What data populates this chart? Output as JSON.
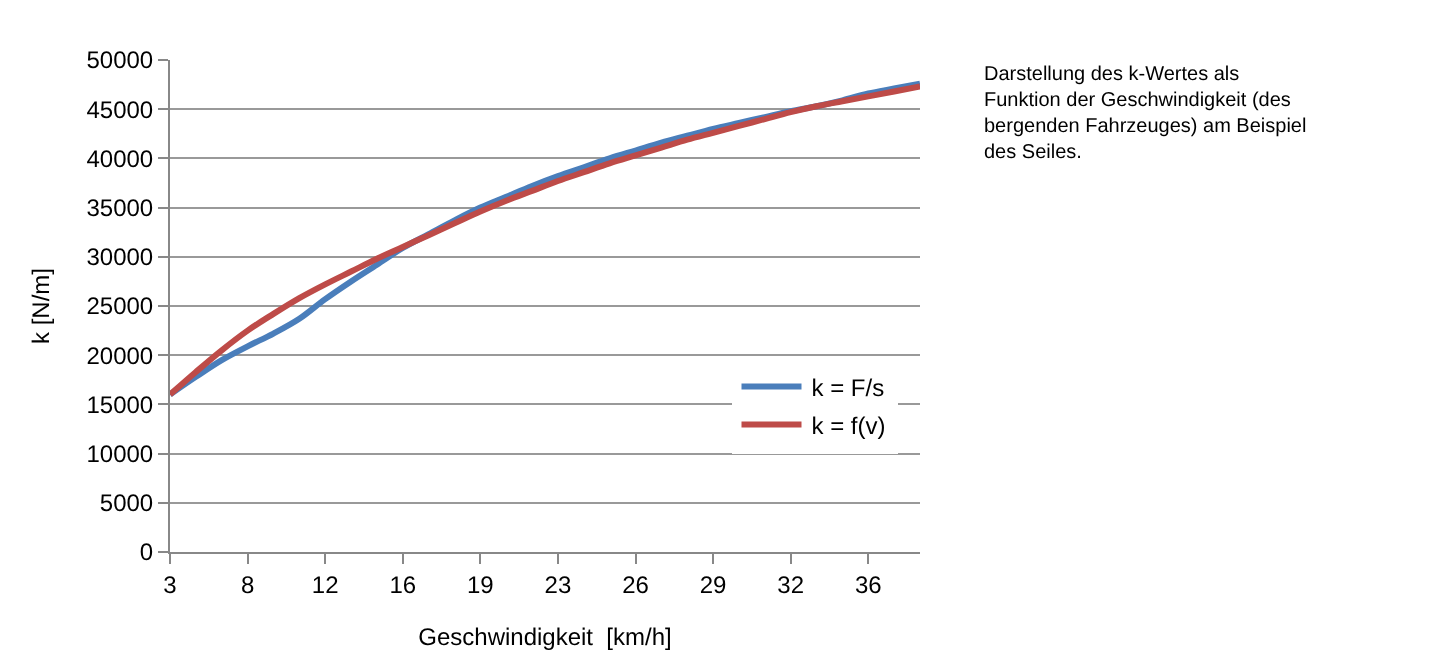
{
  "chart_data": {
    "type": "line",
    "xlabel": "Geschwindigkeit  [km/h]",
    "ylabel": "k [N/m]",
    "categories": [
      "3",
      null,
      null,
      "8",
      null,
      null,
      "12",
      null,
      null,
      "16",
      null,
      null,
      "19",
      null,
      null,
      "23",
      null,
      null,
      "26",
      null,
      null,
      "29",
      null,
      null,
      "32",
      null,
      null,
      "36",
      null,
      null
    ],
    "series": [
      {
        "name": "k = F/s",
        "color": "#4a7ebb",
        "values": [
          16000,
          17800,
          19500,
          20900,
          22200,
          23700,
          25700,
          27500,
          29200,
          30900,
          32300,
          33700,
          35000,
          36100,
          37200,
          38200,
          39100,
          40000,
          40800,
          41600,
          42300,
          43000,
          43600,
          44200,
          44800,
          45300,
          45900,
          46600,
          47100,
          47600
        ]
      },
      {
        "name": "k = f(v)",
        "color": "#be4b48",
        "values": [
          16000,
          18300,
          20500,
          22500,
          24200,
          25800,
          27200,
          28500,
          29800,
          31000,
          32200,
          33400,
          34600,
          35700,
          36700,
          37700,
          38600,
          39500,
          40300,
          41100,
          41900,
          42600,
          43300,
          44000,
          44700,
          45300,
          45800,
          46300,
          46800,
          47300
        ]
      }
    ],
    "ylim": [
      0,
      50000
    ],
    "yticks": [
      0,
      5000,
      10000,
      15000,
      20000,
      25000,
      30000,
      35000,
      40000,
      45000,
      50000
    ],
    "grid": "y",
    "legend": "bottom right",
    "marker": "none",
    "line_style": "solid",
    "annotations": [
      "Darstellung des k-Wertes als\nFunktion der Geschwindigkeit (des\nbergenden Fahrzeuges) am Beispiel\ndes Seiles."
    ]
  }
}
